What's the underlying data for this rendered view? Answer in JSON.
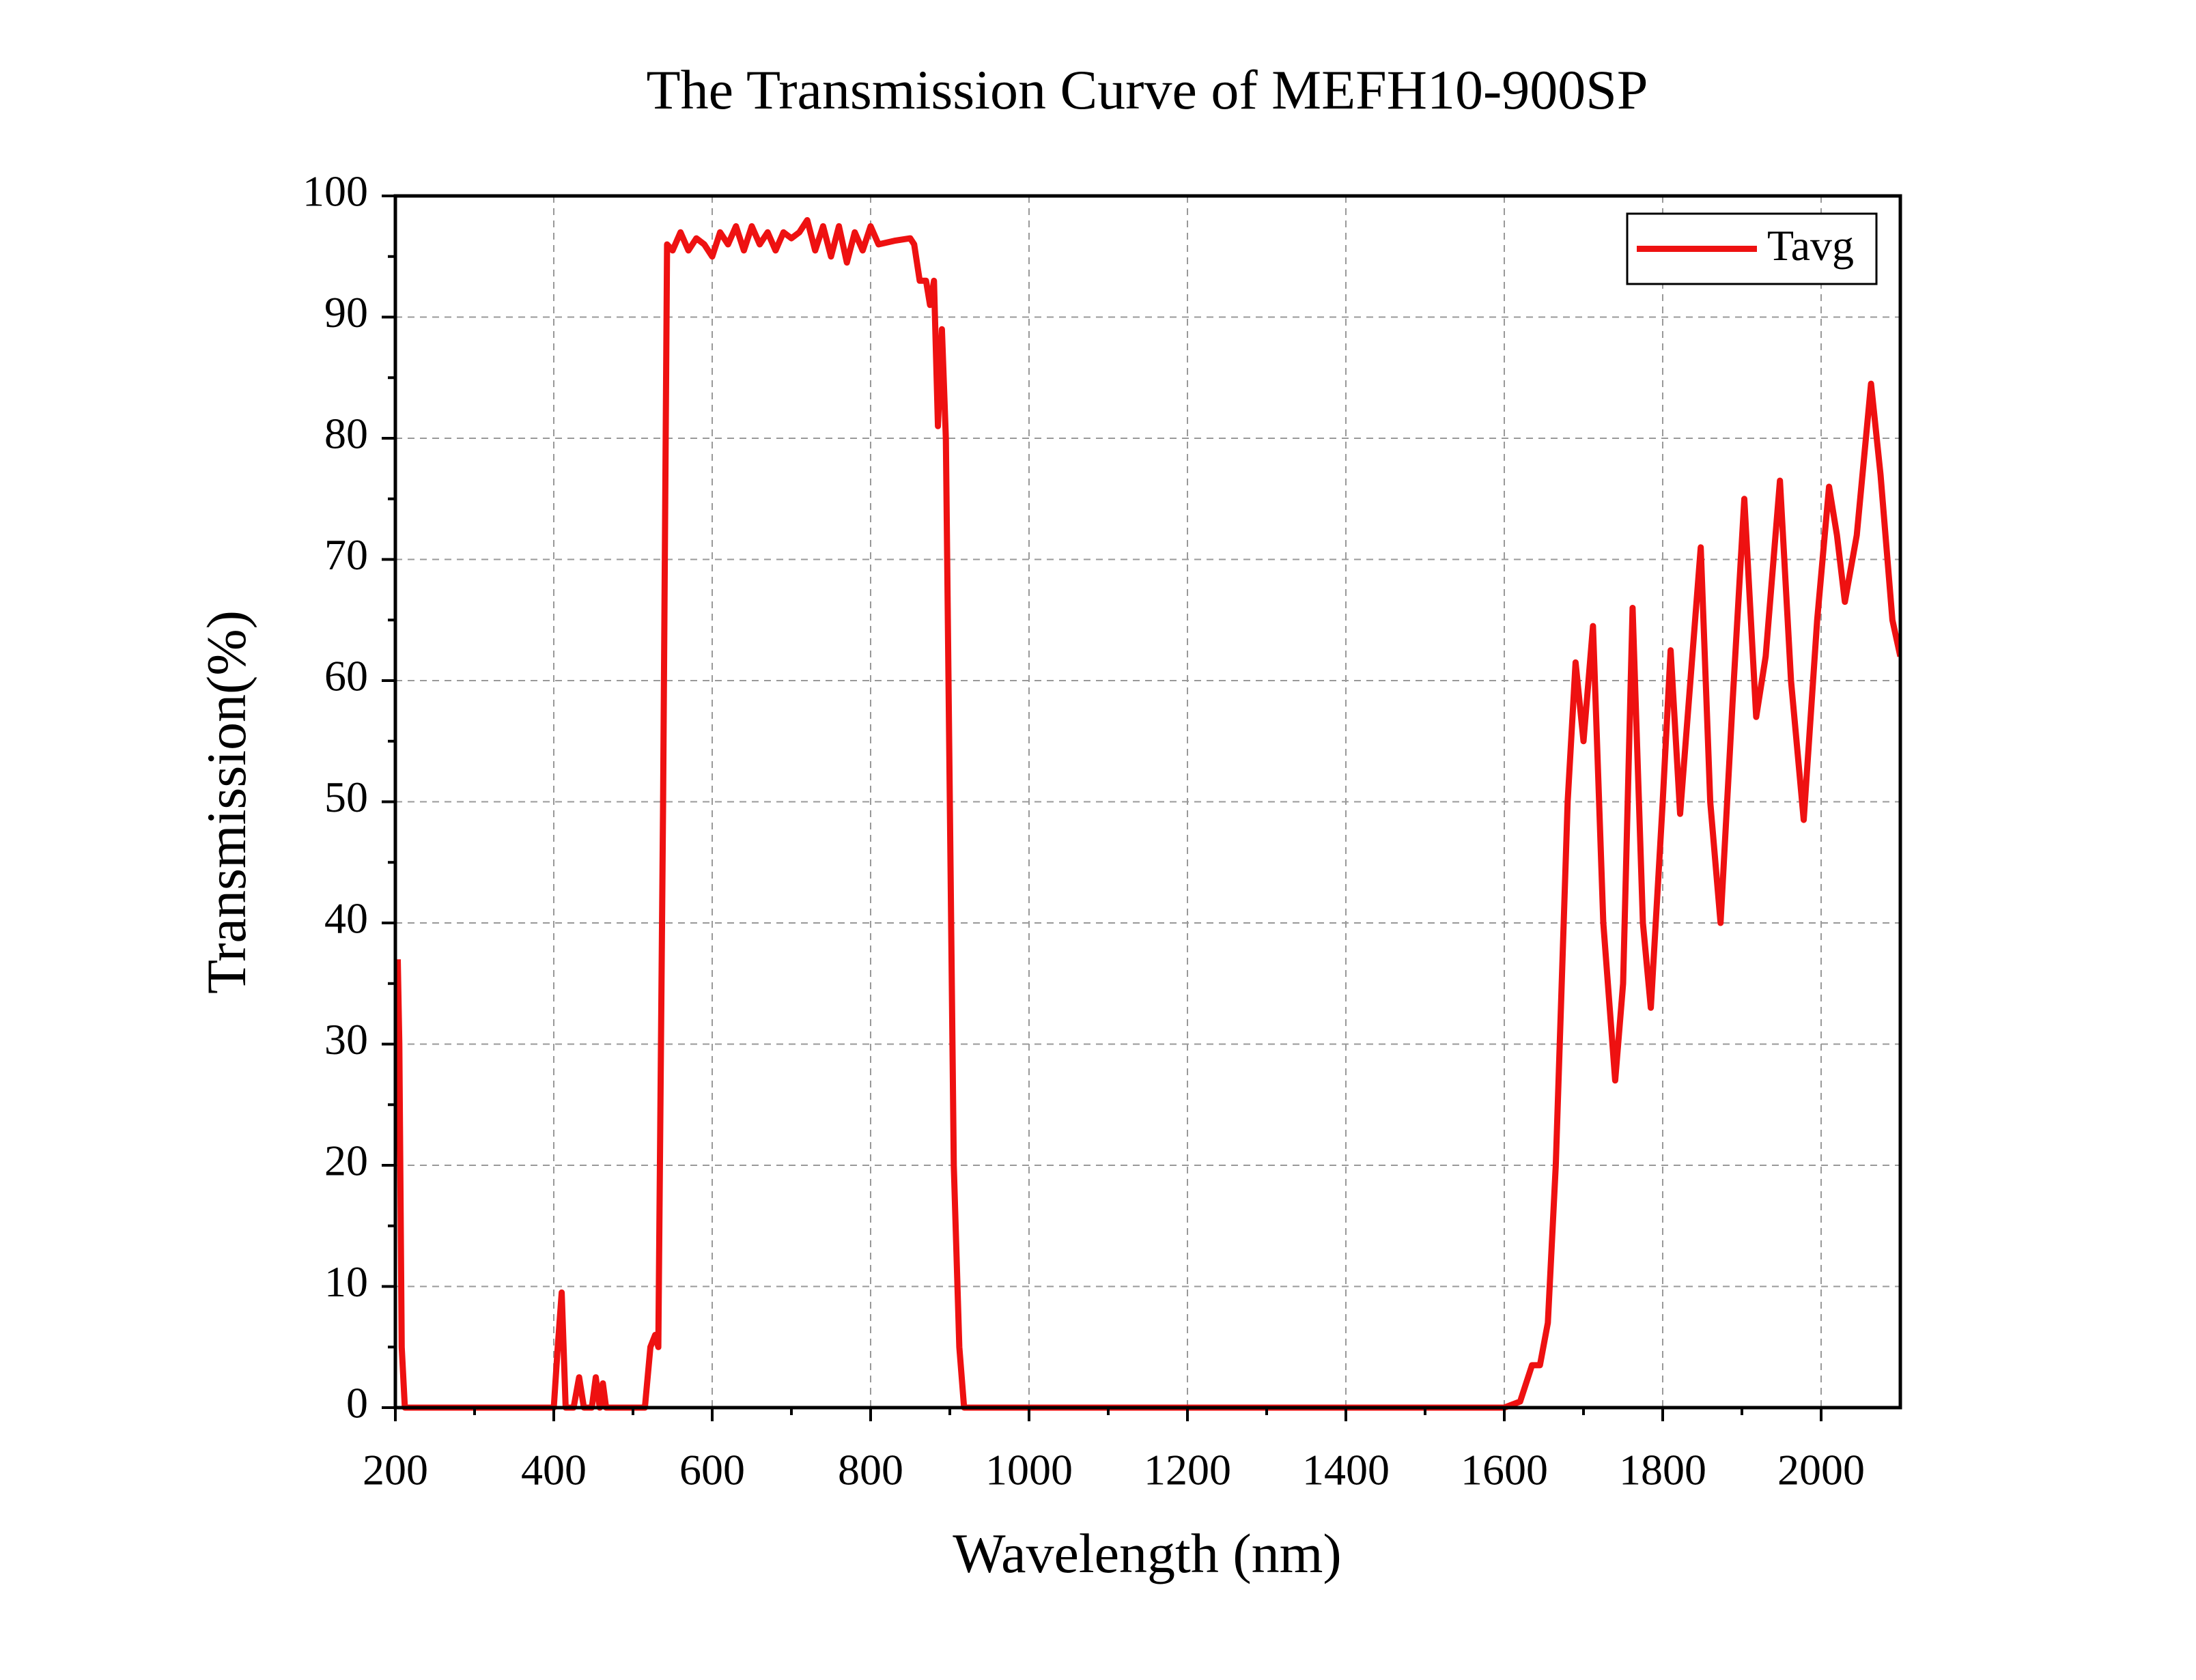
{
  "chart_data": {
    "type": "line",
    "title": "The Transmission Curve of MEFH10-900SP",
    "xlabel": "Wavelength (nm)",
    "ylabel": "Transmission(%)",
    "xlim": [
      200,
      2100
    ],
    "ylim": [
      0,
      100
    ],
    "xticks": [
      200,
      400,
      600,
      800,
      1000,
      1200,
      1400,
      1600,
      1800,
      2000
    ],
    "yticks": [
      0,
      10,
      20,
      30,
      40,
      50,
      60,
      70,
      80,
      90,
      100
    ],
    "grid": true,
    "legend": "upper right",
    "x": [
      203,
      205,
      208,
      212,
      400,
      405,
      410,
      415,
      425,
      432,
      438,
      448,
      453,
      458,
      462,
      466,
      515,
      522,
      528,
      532,
      538,
      543,
      550,
      560,
      570,
      580,
      590,
      600,
      610,
      620,
      630,
      640,
      650,
      660,
      670,
      680,
      690,
      700,
      710,
      720,
      730,
      740,
      750,
      760,
      770,
      780,
      790,
      800,
      810,
      830,
      850,
      855,
      862,
      870,
      875,
      880,
      885,
      890,
      895,
      900,
      905,
      912,
      918,
      1600,
      1620,
      1635,
      1645,
      1655,
      1665,
      1680,
      1690,
      1700,
      1712,
      1725,
      1740,
      1750,
      1762,
      1775,
      1785,
      1800,
      1810,
      1822,
      1835,
      1848,
      1860,
      1873,
      1888,
      1903,
      1918,
      1930,
      1948,
      1962,
      1978,
      1995,
      2010,
      2020,
      2030,
      2045,
      2063,
      2075,
      2090,
      2100
    ],
    "series": [
      {
        "name": "Tavg",
        "color": "#ee1111",
        "values": [
          37,
          30,
          5,
          0,
          0,
          5,
          9.5,
          0,
          0,
          2.5,
          0,
          0,
          2.5,
          0,
          2,
          0,
          0,
          5,
          6,
          5,
          50,
          96,
          95.5,
          97,
          95.5,
          96.5,
          96,
          95,
          97,
          96,
          97.5,
          95.5,
          97.5,
          96,
          97,
          95.5,
          97,
          96.5,
          97,
          98,
          95.5,
          97.5,
          95,
          97.5,
          94.5,
          97,
          95.5,
          97.5,
          96,
          96.3,
          96.5,
          96,
          93,
          93,
          91,
          93,
          81,
          89,
          80,
          50,
          20,
          5,
          0,
          0,
          0.5,
          3.5,
          3.5,
          7,
          20,
          50,
          61.5,
          55,
          64.5,
          40,
          27,
          35,
          66,
          40,
          33,
          50,
          62.5,
          49,
          60,
          71,
          50,
          40,
          58,
          75,
          57,
          62,
          76.5,
          60,
          48.5,
          65,
          76,
          72,
          66.5,
          72,
          84.5,
          77,
          65,
          62
        ]
      }
    ]
  }
}
